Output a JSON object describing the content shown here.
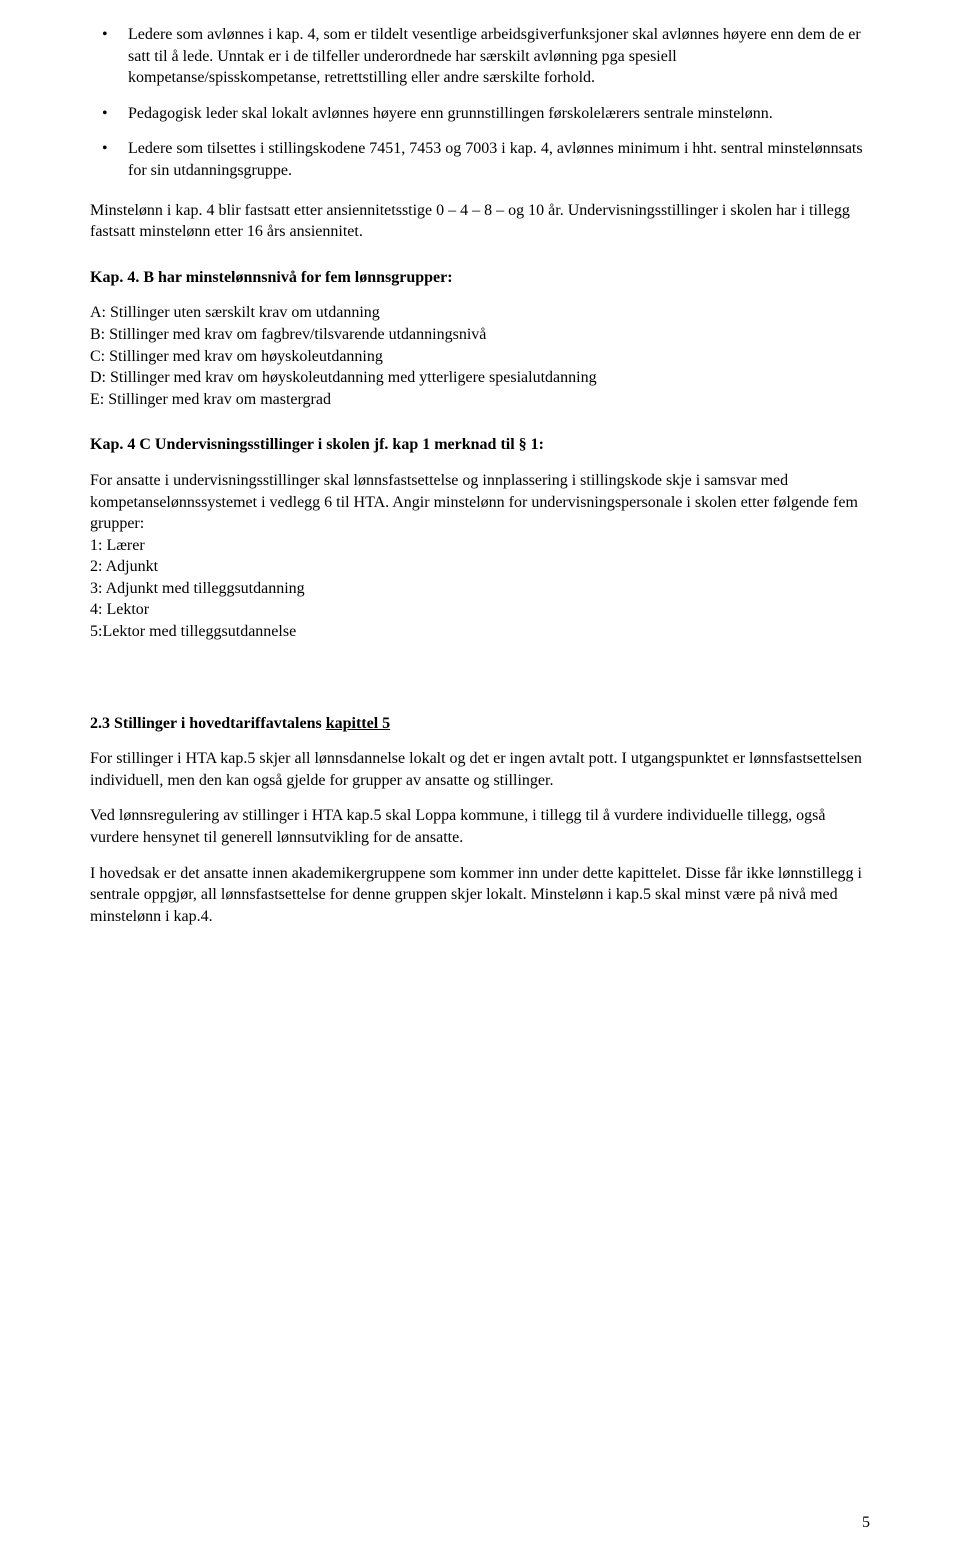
{
  "bullets": [
    "Ledere som avlønnes i kap. 4, som er tildelt vesentlige arbeidsgiverfunksjoner skal avlønnes høyere enn dem de er satt til å lede. Unntak er i de tilfeller underordnede har særskilt avlønning pga spesiell kompetanse/spisskompetanse, retrettstilling eller andre særskilte forhold.",
    "Pedagogisk leder skal lokalt avlønnes høyere enn grunnstillingen førskolelærers sentrale minstelønn.",
    "Ledere som tilsettes i stillingskodene 7451, 7453 og 7003 i kap. 4, avlønnes minimum i hht. sentral minstelønnsats for sin utdanningsgruppe."
  ],
  "para_minstelonn": "Minstelønn i kap. 4 blir fastsatt etter ansiennitetsstige 0 – 4 – 8 – og 10 år. Undervisningsstillinger i skolen har i tillegg fastsatt minstelønn etter 16 års ansiennitet.",
  "heading_4b": "Kap. 4. B har minstelønnsnivå for fem lønnsgrupper:",
  "groups_4b": [
    "A: Stillinger uten særskilt krav om utdanning",
    "B: Stillinger med krav om fagbrev/tilsvarende utdanningsnivå",
    "C: Stillinger med krav om høyskoleutdanning",
    "D: Stillinger med krav om høyskoleutdanning med ytterligere spesialutdanning",
    "E: Stillinger med krav om mastergrad"
  ],
  "heading_4c": "Kap. 4 C Undervisningsstillinger i skolen jf. kap 1 merknad til § 1:",
  "para_4c": " For ansatte i undervisningsstillinger skal lønnsfastsettelse og innplassering i stillingskode skje i samsvar med kompetanselønnssystemet i vedlegg 6 til HTA. Angir minstelønn for undervisningspersonale i skolen etter følgende fem grupper:",
  "groups_4c": [
    "1: Lærer",
    "2: Adjunkt",
    "3: Adjunkt med tilleggsutdanning",
    "4: Lektor",
    "5:Lektor med tilleggsutdannelse"
  ],
  "heading_23_prefix": "2.3 Stillinger i hovedtariffavtalens ",
  "heading_23_underline": "kapittel 5",
  "para_23_1": "For stillinger i HTA kap.5 skjer all lønnsdannelse lokalt og det er ingen avtalt pott. I utgangspunktet er lønnsfastsettelsen individuell, men den kan også gjelde for grupper av ansatte og stillinger.",
  "para_23_2": "Ved lønnsregulering av stillinger i HTA kap.5 skal Loppa kommune, i tillegg til å vurdere individuelle tillegg, også vurdere hensynet til generell lønnsutvikling for de ansatte.",
  "para_23_3": "I hovedsak er det ansatte innen akademikergruppene som kommer inn under dette kapittelet. Disse får ikke lønnstillegg i sentrale oppgjør, all lønnsfastsettelse for denne gruppen skjer lokalt. Minstelønn i kap.5 skal minst være på nivå med minstelønn i kap.4.",
  "page_number": "5"
}
